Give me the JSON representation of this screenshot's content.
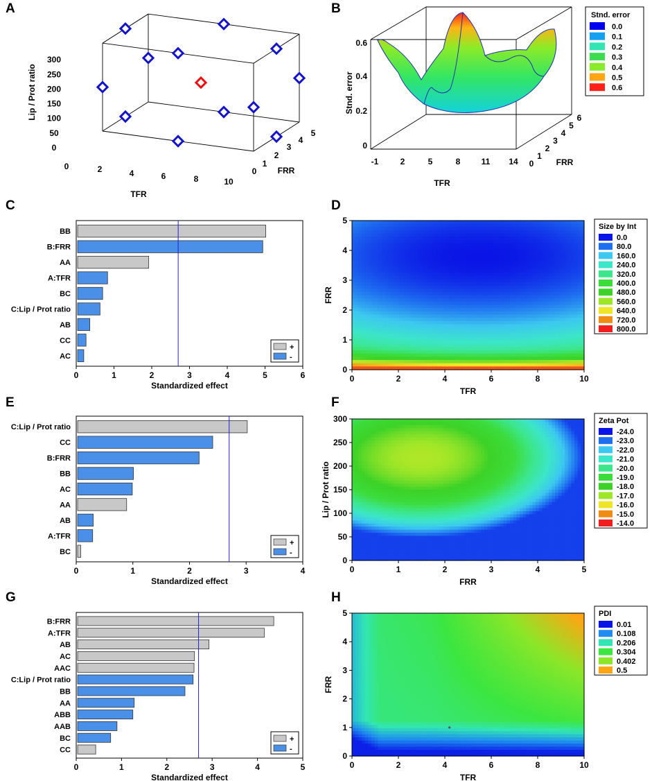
{
  "chart_data": [
    {
      "panel": "A",
      "type": "scatter",
      "subtype": "3d-design-points",
      "x_axis": {
        "label": "TFR",
        "ticks": [
          "0",
          "2",
          "4",
          "6",
          "8",
          "10"
        ],
        "range": [
          0,
          10
        ]
      },
      "y_axis": {
        "label": "FRR",
        "ticks": [
          "0",
          "1",
          "2",
          "3",
          "4",
          "5"
        ],
        "range": [
          0,
          5
        ]
      },
      "z_axis": {
        "label": "Lip / Prot ratio",
        "ticks": [
          "0",
          "50",
          "100",
          "150",
          "200",
          "250",
          "300"
        ],
        "range": [
          0,
          300
        ]
      },
      "points": [
        {
          "x": 0,
          "y": 0,
          "z": 150
        },
        {
          "x": 10,
          "y": 0,
          "z": 150
        },
        {
          "x": 0,
          "y": 5,
          "z": 150
        },
        {
          "x": 10,
          "y": 5,
          "z": 150
        },
        {
          "x": 0,
          "y": 2.5,
          "z": 0
        },
        {
          "x": 10,
          "y": 2.5,
          "z": 0
        },
        {
          "x": 0,
          "y": 2.5,
          "z": 300
        },
        {
          "x": 10,
          "y": 2.5,
          "z": 300
        },
        {
          "x": 5,
          "y": 0,
          "z": 0
        },
        {
          "x": 5,
          "y": 5,
          "z": 0
        },
        {
          "x": 5,
          "y": 0,
          "z": 300
        },
        {
          "x": 5,
          "y": 5,
          "z": 300
        },
        {
          "x": 5,
          "y": 2.5,
          "z": 150,
          "center": true
        }
      ],
      "point_color": "#1414c8",
      "center_color": "#e81010"
    },
    {
      "panel": "B",
      "type": "surface",
      "x_axis": {
        "label": "TFR",
        "ticks": [
          "-1",
          "2",
          "5",
          "8",
          "11",
          "14"
        ]
      },
      "y_axis": {
        "label": "FRR",
        "ticks": [
          "0",
          "1",
          "2",
          "3",
          "4",
          "5",
          "6"
        ]
      },
      "z_axis": {
        "label": "Stnd. error",
        "ticks": [
          "0",
          "0.2",
          "0.4",
          "0.6"
        ],
        "range": [
          0,
          0.65
        ]
      },
      "legend": {
        "title": "Stnd. error",
        "labels": [
          "0.0",
          "0.1",
          "0.2",
          "0.3",
          "0.4",
          "0.5",
          "0.6"
        ],
        "colors": [
          "#0000f0",
          "#14a0f0",
          "#32e6b4",
          "#3cdc50",
          "#8ceb28",
          "#ffa514",
          "#ff2018"
        ]
      }
    },
    {
      "panel": "C",
      "type": "bar",
      "orientation": "horizontal",
      "title": "",
      "xlabel": "Standardized effect",
      "xticks": [
        "0",
        "1",
        "2",
        "3",
        "4",
        "5",
        "6"
      ],
      "xlim": [
        0,
        6
      ],
      "threshold": 2.7,
      "categories": [
        "BB",
        "B:FRR",
        "AA",
        "A:TFR",
        "BC",
        "C:Lip / Prot ratio",
        "AB",
        "CC",
        "AC"
      ],
      "values": [
        5.02,
        4.94,
        1.92,
        0.83,
        0.7,
        0.63,
        0.36,
        0.26,
        0.2
      ],
      "signs": [
        "+",
        "-",
        "+",
        "-",
        "-",
        "-",
        "-",
        "-",
        "-"
      ],
      "legend": [
        {
          "label": "+",
          "color": "#c8c8c8"
        },
        {
          "label": "-",
          "color": "#4a90e8"
        }
      ]
    },
    {
      "panel": "D",
      "type": "heatmap",
      "xlabel": "TFR",
      "ylabel": "FRR",
      "xticks": [
        "0",
        "2",
        "4",
        "6",
        "8",
        "10"
      ],
      "yticks": [
        "0",
        "1",
        "2",
        "3",
        "4",
        "5"
      ],
      "xlim": [
        0,
        10
      ],
      "ylim": [
        0,
        5
      ],
      "legend": {
        "title": "Size by Int",
        "labels": [
          "0.0",
          "80.0",
          "160.0",
          "240.0",
          "320.0",
          "400.0",
          "480.0",
          "560.0",
          "640.0",
          "720.0",
          "800.0"
        ],
        "colors": [
          "#0a14e6",
          "#1e6ef0",
          "#3cc8f0",
          "#3ce6c8",
          "#3ce68c",
          "#3cdc3c",
          "#3cd228",
          "#a0e628",
          "#f0e628",
          "#f08c14",
          "#f01e1e"
        ]
      }
    },
    {
      "panel": "E",
      "type": "bar",
      "orientation": "horizontal",
      "title": "",
      "xlabel": "Standardized effect",
      "xticks": [
        "0",
        "1",
        "2",
        "3",
        "4"
      ],
      "xlim": [
        0,
        4
      ],
      "threshold": 2.7,
      "categories": [
        "C:Lip / Prot ratio",
        "CC",
        "B:FRR",
        "BB",
        "AC",
        "AA",
        "AB",
        "A:TFR",
        "BC"
      ],
      "values": [
        3.02,
        2.41,
        2.17,
        1.01,
        0.99,
        0.89,
        0.3,
        0.29,
        0.08
      ],
      "signs": [
        "+",
        "-",
        "-",
        "-",
        "-",
        "+",
        "-",
        "-",
        "+"
      ],
      "legend": [
        {
          "label": "+",
          "color": "#c8c8c8"
        },
        {
          "label": "-",
          "color": "#4a90e8"
        }
      ]
    },
    {
      "panel": "F",
      "type": "heatmap",
      "xlabel": "FRR",
      "ylabel": "Lip / Prot ratio",
      "xticks": [
        "0",
        "1",
        "2",
        "3",
        "4",
        "5"
      ],
      "yticks": [
        "0",
        "50",
        "100",
        "150",
        "200",
        "250",
        "300"
      ],
      "xlim": [
        0,
        5
      ],
      "ylim": [
        0,
        300
      ],
      "legend": {
        "title": "Zeta Pot",
        "labels": [
          "-24.0",
          "-23.0",
          "-22.0",
          "-21.0",
          "-20.0",
          "-19.0",
          "-18.0",
          "-17.0",
          "-16.0",
          "-15.0",
          "-14.0"
        ],
        "colors": [
          "#0a14e6",
          "#1e6ef0",
          "#3cc8f0",
          "#3ce6c8",
          "#3ce68c",
          "#3cdc3c",
          "#3cd228",
          "#a0e628",
          "#f0e628",
          "#f08c14",
          "#f01e1e"
        ]
      }
    },
    {
      "panel": "G",
      "type": "bar",
      "orientation": "horizontal",
      "title": "",
      "xlabel": "Standardized effect",
      "xticks": [
        "0",
        "1",
        "2",
        "3",
        "4",
        "5"
      ],
      "xlim": [
        0,
        5
      ],
      "threshold": 2.7,
      "categories": [
        "B:FRR",
        "A:TFR",
        "AB",
        "AC",
        "AAC",
        "C:Lip / Prot ratio",
        "BB",
        "AA",
        "ABB",
        "AAB",
        "BC",
        "CC"
      ],
      "values": [
        4.36,
        4.15,
        2.93,
        2.61,
        2.6,
        2.58,
        2.4,
        1.28,
        1.25,
        0.9,
        0.76,
        0.43
      ],
      "signs": [
        "+",
        "+",
        "+",
        "+",
        "+",
        "-",
        "-",
        "-",
        "-",
        "-",
        "-",
        "+"
      ],
      "legend": [
        {
          "label": "+",
          "color": "#c8c8c8"
        },
        {
          "label": "-",
          "color": "#4a90e8"
        }
      ]
    },
    {
      "panel": "H",
      "type": "heatmap",
      "xlabel": "TFR",
      "ylabel": "FRR",
      "xticks": [
        "0",
        "2",
        "4",
        "6",
        "8",
        "10"
      ],
      "yticks": [
        "0",
        "1",
        "2",
        "3",
        "4",
        "5"
      ],
      "xlim": [
        0,
        10
      ],
      "ylim": [
        0,
        5
      ],
      "marker": {
        "x": 4.2,
        "y": 1.0
      },
      "legend": {
        "title": "PDI",
        "labels": [
          "0.01",
          "0.108",
          "0.206",
          "0.304",
          "0.402",
          "0.5"
        ],
        "colors": [
          "#0a14e6",
          "#1e8cf0",
          "#32e6b4",
          "#3ce640",
          "#8ce628",
          "#ffa514"
        ]
      }
    }
  ]
}
